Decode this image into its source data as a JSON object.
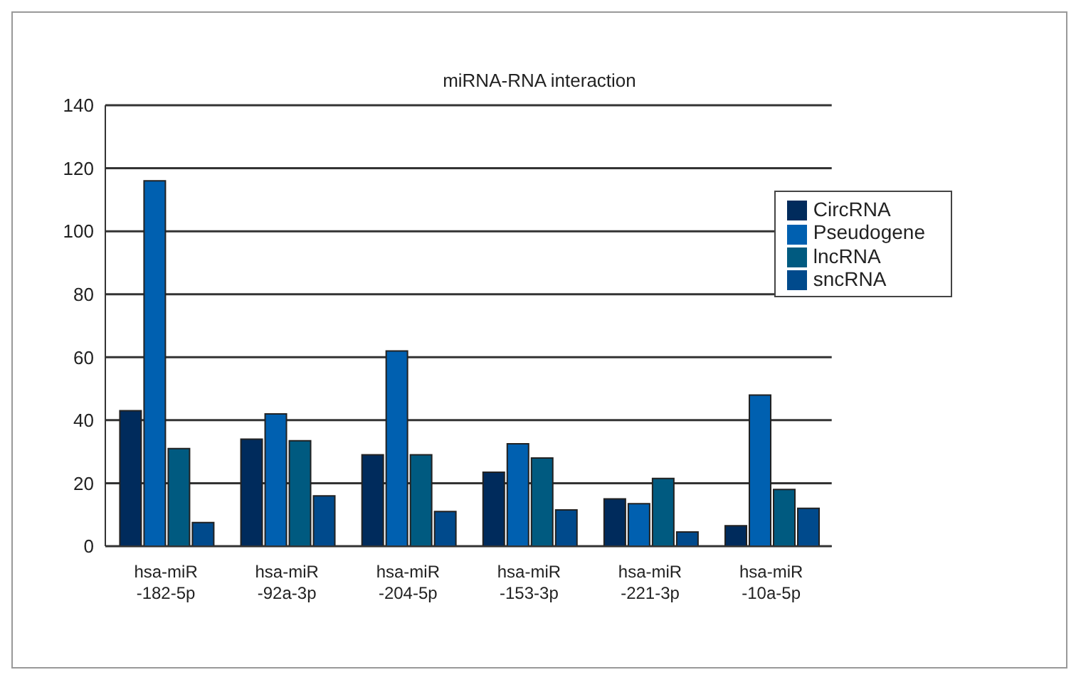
{
  "chart_data": {
    "type": "bar",
    "title": "miRNA-RNA interaction",
    "categories": [
      "hsa-miR -182-5p",
      "hsa-miR -92a-3p",
      "hsa-miR -204-5p",
      "hsa-miR -153-3p",
      "hsa-miR -221-3p",
      "hsa-miR -10a-5p"
    ],
    "series": [
      {
        "name": "CircRNA",
        "color": "#002b5c",
        "values": [
          43,
          34,
          29,
          23.5,
          15,
          6.5
        ]
      },
      {
        "name": "Pseudogene",
        "color": "#0060b0",
        "values": [
          116,
          42,
          62,
          32.5,
          13.5,
          48
        ]
      },
      {
        "name": "lncRNA",
        "color": "#005a80",
        "values": [
          31,
          33.5,
          29,
          28,
          21.5,
          18
        ]
      },
      {
        "name": "sncRNA",
        "color": "#004a8c",
        "values": [
          7.5,
          16,
          11,
          11.5,
          4.5,
          12
        ]
      }
    ],
    "ylim": [
      0,
      140
    ],
    "yticks": [
      0,
      20,
      40,
      60,
      80,
      100,
      120,
      140
    ],
    "grid": "y",
    "legend": "top right"
  }
}
